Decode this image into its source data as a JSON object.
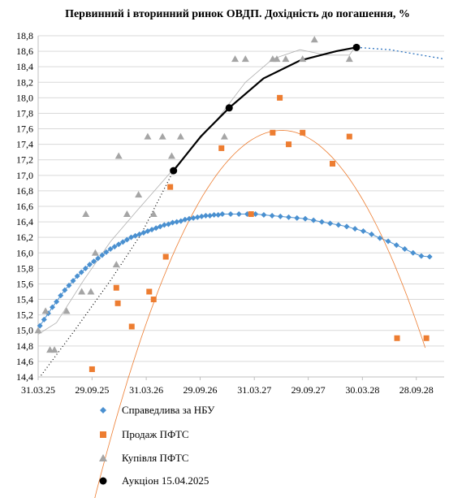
{
  "chart_data": {
    "type": "scatter",
    "title": "Первинний і вторинний ринок ОВДП. Дохідність до погашення, %",
    "xlabel": "",
    "ylabel": "",
    "ylim": [
      14.4,
      18.8
    ],
    "xlim": [
      "2025-03-31",
      "2028-12-31"
    ],
    "y_ticks": [
      "14,4",
      "14,6",
      "14,8",
      "15,0",
      "15,2",
      "15,4",
      "15,6",
      "15,8",
      "16,0",
      "16,2",
      "16,4",
      "16,6",
      "16,8",
      "17,0",
      "17,2",
      "17,4",
      "17,6",
      "17,8",
      "18,0",
      "18,2",
      "18,4",
      "18,6",
      "18,8"
    ],
    "x_ticks": [
      {
        "label": "31.03.25",
        "date": "2025-03-31"
      },
      {
        "label": "29.09.25",
        "date": "2025-09-29"
      },
      {
        "label": "31.03.26",
        "date": "2026-03-31"
      },
      {
        "label": "29.09.26",
        "date": "2026-09-29"
      },
      {
        "label": "31.03.27",
        "date": "2027-03-31"
      },
      {
        "label": "29.09.27",
        "date": "2027-09-29"
      },
      {
        "label": "30.03.28",
        "date": "2028-03-30"
      },
      {
        "label": "28.09.28",
        "date": "2028-09-28"
      }
    ],
    "grid": "horizontal",
    "legend_position": "bottom",
    "series": [
      {
        "name": "Справедлива за НБУ",
        "marker": "diamond",
        "color": "#4a90d0",
        "points": [
          [
            "2025-04-06",
            15.06
          ],
          [
            "2025-04-20",
            15.14
          ],
          [
            "2025-05-04",
            15.22
          ],
          [
            "2025-05-18",
            15.3
          ],
          [
            "2025-06-01",
            15.37
          ],
          [
            "2025-06-15",
            15.45
          ],
          [
            "2025-06-29",
            15.52
          ],
          [
            "2025-07-13",
            15.58
          ],
          [
            "2025-07-27",
            15.64
          ],
          [
            "2025-08-10",
            15.7
          ],
          [
            "2025-08-24",
            15.75
          ],
          [
            "2025-09-07",
            15.8
          ],
          [
            "2025-09-21",
            15.85
          ],
          [
            "2025-10-05",
            15.89
          ],
          [
            "2025-10-19",
            15.93
          ],
          [
            "2025-11-02",
            15.97
          ],
          [
            "2025-11-16",
            16.01
          ],
          [
            "2025-11-30",
            16.05
          ],
          [
            "2025-12-14",
            16.08
          ],
          [
            "2025-12-28",
            16.11
          ],
          [
            "2026-01-11",
            16.14
          ],
          [
            "2026-01-25",
            16.17
          ],
          [
            "2026-02-08",
            16.2
          ],
          [
            "2026-02-22",
            16.22
          ],
          [
            "2026-03-08",
            16.24
          ],
          [
            "2026-03-22",
            16.26
          ],
          [
            "2026-04-05",
            16.28
          ],
          [
            "2026-04-19",
            16.3
          ],
          [
            "2026-05-03",
            16.32
          ],
          [
            "2026-05-17",
            16.34
          ],
          [
            "2026-05-31",
            16.36
          ],
          [
            "2026-06-14",
            16.37
          ],
          [
            "2026-06-28",
            16.39
          ],
          [
            "2026-07-12",
            16.4
          ],
          [
            "2026-07-26",
            16.41
          ],
          [
            "2026-08-09",
            16.43
          ],
          [
            "2026-08-23",
            16.44
          ],
          [
            "2026-09-06",
            16.45
          ],
          [
            "2026-09-20",
            16.46
          ],
          [
            "2026-10-04",
            16.47
          ],
          [
            "2026-10-18",
            16.48
          ],
          [
            "2026-11-01",
            16.48
          ],
          [
            "2026-11-15",
            16.49
          ],
          [
            "2026-11-29",
            16.49
          ],
          [
            "2026-12-13",
            16.5
          ],
          [
            "2027-01-10",
            16.5
          ],
          [
            "2027-02-07",
            16.5
          ],
          [
            "2027-03-07",
            16.5
          ],
          [
            "2027-04-04",
            16.5
          ],
          [
            "2027-05-02",
            16.49
          ],
          [
            "2027-05-30",
            16.48
          ],
          [
            "2027-06-27",
            16.47
          ],
          [
            "2027-07-25",
            16.46
          ],
          [
            "2027-08-22",
            16.45
          ],
          [
            "2027-09-19",
            16.44
          ],
          [
            "2027-10-17",
            16.42
          ],
          [
            "2027-11-14",
            16.4
          ],
          [
            "2027-12-12",
            16.38
          ],
          [
            "2028-01-09",
            16.36
          ],
          [
            "2028-02-06",
            16.34
          ],
          [
            "2028-03-05",
            16.31
          ],
          [
            "2028-04-02",
            16.28
          ],
          [
            "2028-04-30",
            16.24
          ],
          [
            "2028-05-28",
            16.19
          ],
          [
            "2028-06-25",
            16.15
          ],
          [
            "2028-07-23",
            16.1
          ],
          [
            "2028-08-20",
            16.05
          ],
          [
            "2028-09-17",
            16.0
          ],
          [
            "2028-10-15",
            15.96
          ],
          [
            "2028-11-12",
            15.95
          ]
        ]
      },
      {
        "name": "Продаж ПФТС",
        "marker": "square",
        "color": "#ed7d31",
        "points": [
          [
            "2025-09-29",
            14.5
          ],
          [
            "2025-12-20",
            15.55
          ],
          [
            "2025-12-25",
            15.35
          ],
          [
            "2026-02-10",
            15.05
          ],
          [
            "2026-04-10",
            15.5
          ],
          [
            "2026-04-25",
            15.4
          ],
          [
            "2026-06-05",
            15.95
          ],
          [
            "2026-06-20",
            16.85
          ],
          [
            "2026-12-10",
            17.35
          ],
          [
            "2027-03-20",
            16.5
          ],
          [
            "2027-06-01",
            17.55
          ],
          [
            "2027-06-25",
            18.0
          ],
          [
            "2027-07-25",
            17.4
          ],
          [
            "2027-09-10",
            17.55
          ],
          [
            "2027-12-20",
            17.15
          ],
          [
            "2028-02-15",
            17.5
          ],
          [
            "2028-07-25",
            14.9
          ],
          [
            "2028-11-01",
            14.9
          ]
        ]
      },
      {
        "name": "Купівля ПФТС",
        "marker": "triangle",
        "color": "#a5a5a5",
        "points": [
          [
            "2025-03-31",
            15.0
          ],
          [
            "2025-04-25",
            15.25
          ],
          [
            "2025-05-10",
            14.75
          ],
          [
            "2025-05-25",
            14.75
          ],
          [
            "2025-07-05",
            15.25
          ],
          [
            "2025-08-25",
            15.5
          ],
          [
            "2025-09-08",
            16.5
          ],
          [
            "2025-09-25",
            15.5
          ],
          [
            "2025-10-10",
            16.0
          ],
          [
            "2025-12-20",
            15.85
          ],
          [
            "2025-12-28",
            17.25
          ],
          [
            "2026-01-25",
            16.5
          ],
          [
            "2026-03-05",
            16.75
          ],
          [
            "2026-04-05",
            17.5
          ],
          [
            "2026-04-25",
            16.5
          ],
          [
            "2026-05-25",
            17.5
          ],
          [
            "2026-06-25",
            17.25
          ],
          [
            "2026-07-25",
            17.5
          ],
          [
            "2026-12-20",
            17.5
          ],
          [
            "2027-01-25",
            18.5
          ],
          [
            "2027-03-01",
            18.5
          ],
          [
            "2027-06-01",
            18.5
          ],
          [
            "2027-06-15",
            18.5
          ],
          [
            "2027-07-15",
            18.5
          ],
          [
            "2027-09-10",
            18.5
          ],
          [
            "2027-10-20",
            18.75
          ],
          [
            "2028-02-15",
            18.5
          ]
        ]
      },
      {
        "name": "Аукціон 15.04.2025",
        "marker": "circle",
        "color": "#000000",
        "points": [
          [
            "2026-07-01",
            17.06
          ],
          [
            "2027-01-05",
            17.87
          ],
          [
            "2028-03-10",
            18.65
          ]
        ]
      }
    ]
  }
}
